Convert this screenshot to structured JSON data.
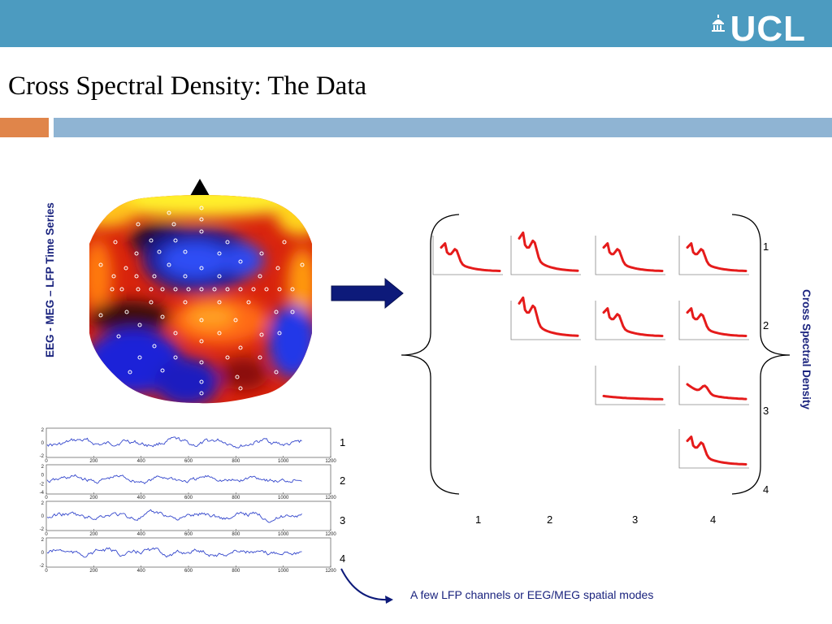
{
  "header": {
    "logo_text": "UCL",
    "bar_color": "#4c9bc0"
  },
  "slide": {
    "title": "Cross Spectral Density: The Data",
    "accent_orange": "#e0854a",
    "accent_blue": "#8fb4d3",
    "left_label": "EEG - MEG – LFP Time Series",
    "right_label": "Cross Spectral Density",
    "caption": "A few LFP channels or EEG/MEG spatial modes",
    "trace_color": "#3346cc",
    "csd_color": "#e51b1b"
  },
  "time_series": {
    "channels": [
      "1",
      "2",
      "3",
      "4"
    ],
    "x_ticks": [
      "0",
      "200",
      "400",
      "600",
      "800",
      "1000",
      "1200"
    ],
    "y_ticks": [
      [
        "2",
        "0",
        "-2"
      ],
      [
        "2",
        "0",
        "-2",
        "-4"
      ],
      [
        "2",
        "0",
        "-2"
      ],
      [
        "2",
        "0",
        "-2"
      ]
    ]
  },
  "csd_matrix": {
    "row_labels": [
      "1",
      "2",
      "3",
      "4"
    ],
    "col_labels": [
      "1",
      "2",
      "3",
      "4"
    ]
  }
}
